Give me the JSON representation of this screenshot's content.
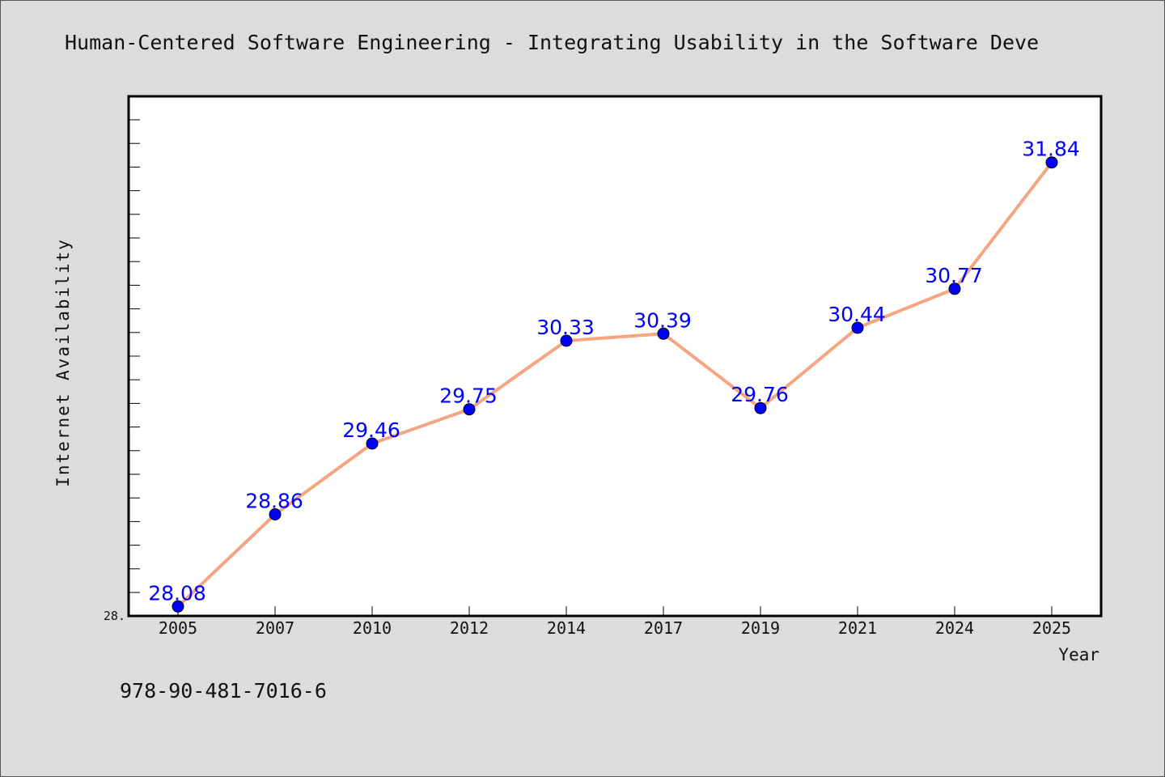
{
  "chart_data": {
    "type": "line",
    "title": "Human-Centered Software Engineering - Integrating Usability in the Software Deve",
    "xlabel": "Year",
    "ylabel": "Internet Availability",
    "categories": [
      "2005",
      "2007",
      "2010",
      "2012",
      "2014",
      "2017",
      "2019",
      "2021",
      "2024",
      "2025"
    ],
    "series": [
      {
        "values": [
          28.08,
          28.86,
          29.46,
          29.75,
          30.33,
          30.39,
          29.76,
          30.44,
          30.77,
          31.84
        ]
      }
    ],
    "value_labels": [
      "28.08",
      "28.86",
      "29.46",
      "29.75",
      "30.33",
      "30.39",
      "29.76",
      "30.44",
      "30.77",
      "31.84"
    ],
    "ylim": [
      28.0,
      32.4
    ],
    "ytick_label": "28.",
    "grid": false,
    "line_color": "#f4a582",
    "marker_color": "#0000ff",
    "label_color": "#0000ff"
  },
  "footer": {
    "isbn": "978-90-481-7016-6"
  }
}
